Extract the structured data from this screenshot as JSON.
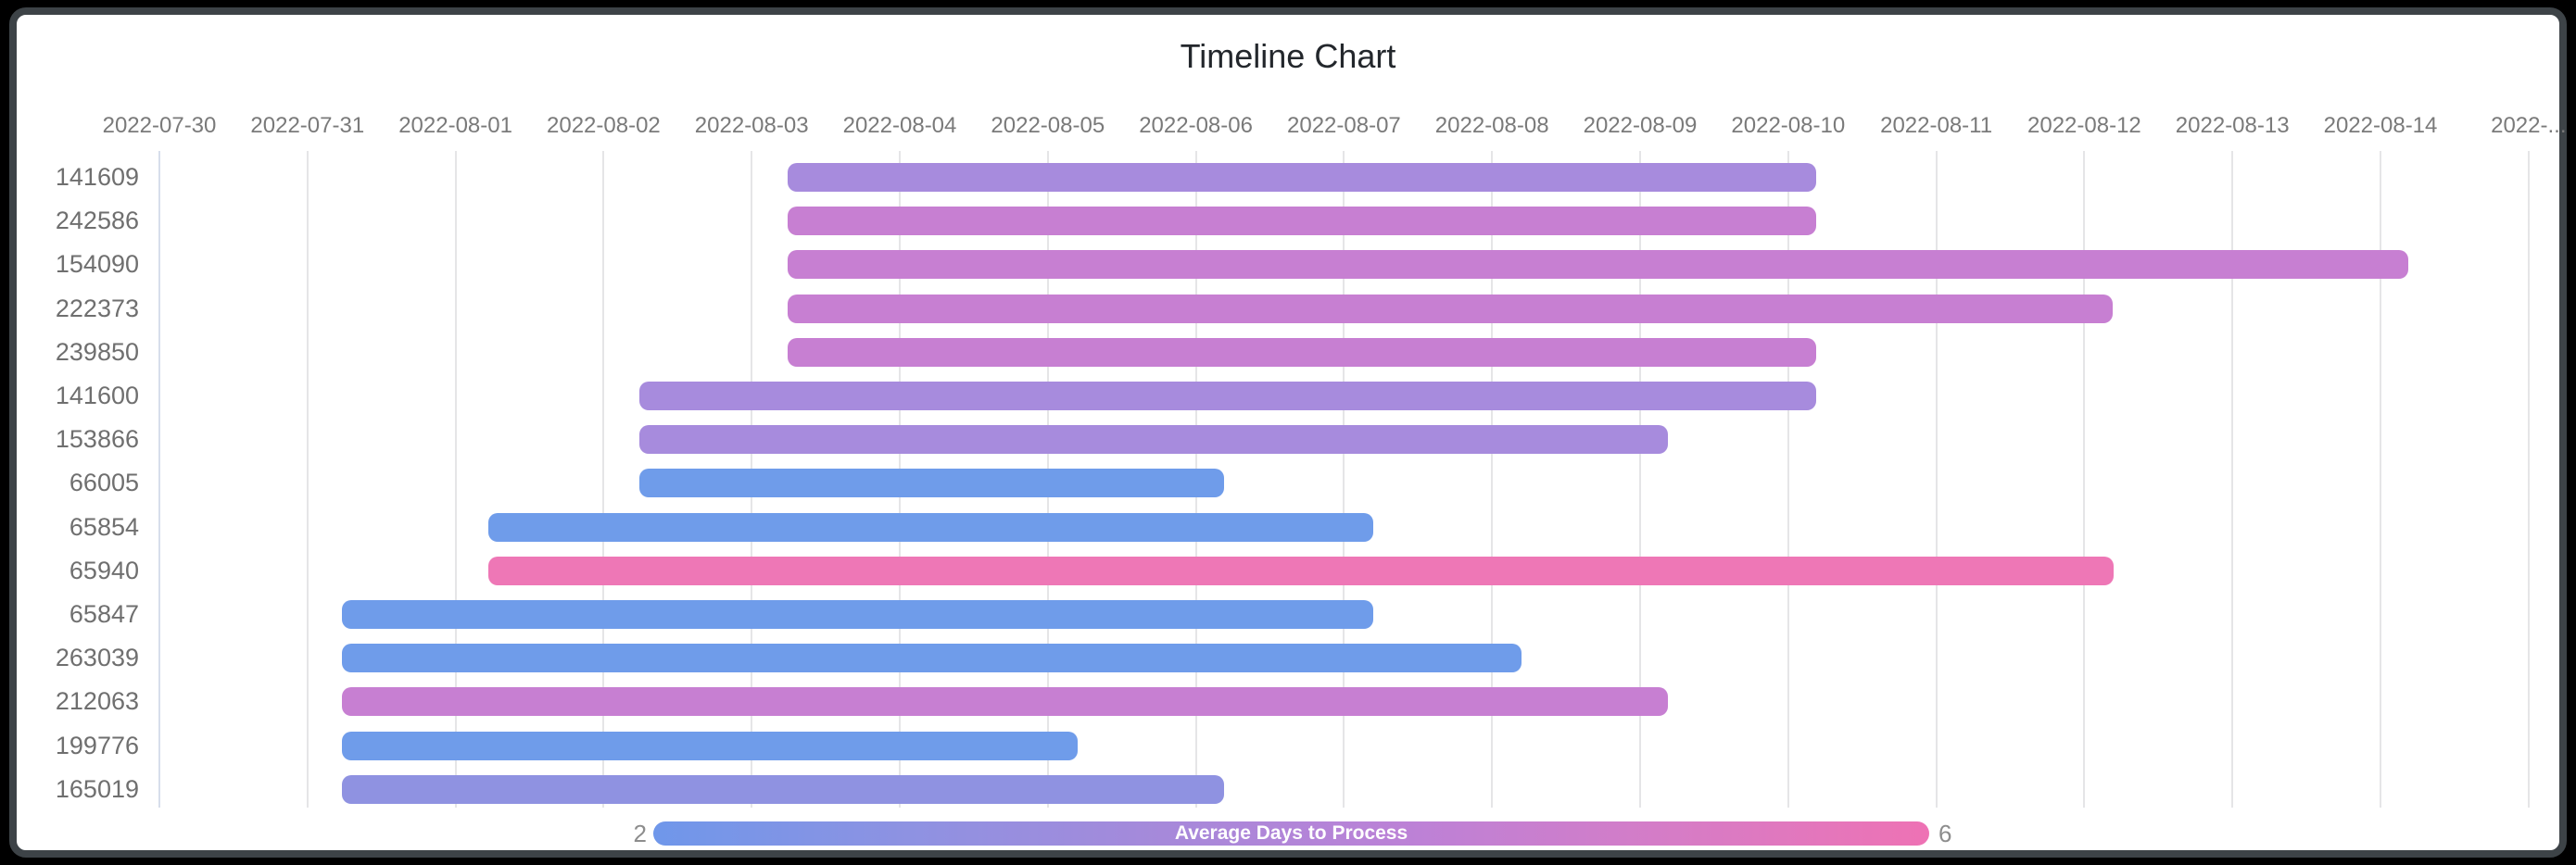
{
  "chart_data": {
    "type": "bar",
    "variant": "timeline-gantt",
    "title": "Timeline Chart",
    "axis": {
      "origin_date": "2022-07-30",
      "tick_labels": [
        "2022-07-30",
        "2022-07-31",
        "2022-08-01",
        "2022-08-02",
        "2022-08-03",
        "2022-08-04",
        "2022-08-05",
        "2022-08-06",
        "2022-08-07",
        "2022-08-08",
        "2022-08-09",
        "2022-08-10",
        "2022-08-11",
        "2022-08-12",
        "2022-08-13",
        "2022-08-14",
        "2022-..."
      ],
      "grid": true
    },
    "rows": [
      {
        "label": "141609",
        "start": "2022-08-03",
        "end": "2022-08-10",
        "start_day": 4.24,
        "end_day": 11.19,
        "color": "#a78bdd"
      },
      {
        "label": "242586",
        "start": "2022-08-03",
        "end": "2022-08-10",
        "start_day": 4.24,
        "end_day": 11.19,
        "color": "#c77fd2"
      },
      {
        "label": "154090",
        "start": "2022-08-03",
        "end": "2022-08-14",
        "start_day": 4.24,
        "end_day": 15.19,
        "color": "#c77fd2"
      },
      {
        "label": "222373",
        "start": "2022-08-03",
        "end": "2022-08-12",
        "start_day": 4.24,
        "end_day": 13.19,
        "color": "#c77fd2"
      },
      {
        "label": "239850",
        "start": "2022-08-03",
        "end": "2022-08-10",
        "start_day": 4.24,
        "end_day": 11.19,
        "color": "#c77fd2"
      },
      {
        "label": "141600",
        "start": "2022-08-02",
        "end": "2022-08-10",
        "start_day": 3.24,
        "end_day": 11.19,
        "color": "#a78bdd"
      },
      {
        "label": "153866",
        "start": "2022-08-02",
        "end": "2022-08-09",
        "start_day": 3.24,
        "end_day": 10.19,
        "color": "#a78bdd"
      },
      {
        "label": "66005",
        "start": "2022-08-02",
        "end": "2022-08-06",
        "start_day": 3.24,
        "end_day": 7.19,
        "color": "#6f9cea"
      },
      {
        "label": "65854",
        "start": "2022-08-01",
        "end": "2022-08-07",
        "start_day": 2.22,
        "end_day": 8.2,
        "color": "#6f9cea"
      },
      {
        "label": "65940",
        "start": "2022-08-01",
        "end": "2022-08-12",
        "start_day": 2.22,
        "end_day": 13.2,
        "color": "#ee77b6"
      },
      {
        "label": "65847",
        "start": "2022-07-31",
        "end": "2022-08-07",
        "start_day": 1.23,
        "end_day": 8.2,
        "color": "#6f9cea"
      },
      {
        "label": "263039",
        "start": "2022-07-31",
        "end": "2022-08-08",
        "start_day": 1.23,
        "end_day": 9.2,
        "color": "#6f9cea"
      },
      {
        "label": "212063",
        "start": "2022-07-31",
        "end": "2022-08-09",
        "start_day": 1.23,
        "end_day": 10.19,
        "color": "#c77fd2"
      },
      {
        "label": "199776",
        "start": "2022-07-31",
        "end": "2022-08-05",
        "start_day": 1.23,
        "end_day": 6.2,
        "color": "#6f9cea"
      },
      {
        "label": "165019",
        "start": "2022-07-31",
        "end": "2022-08-06",
        "start_day": 1.23,
        "end_day": 7.19,
        "color": "#8f92e1"
      }
    ],
    "legend": {
      "title": "Average Days to Process",
      "min_label": "2",
      "max_label": "6",
      "position": "bottom",
      "gradient": [
        "#6f97ea",
        "#8e92e2",
        "#a689da",
        "#bd81d6",
        "#d67cc6",
        "#ee72b4"
      ]
    }
  }
}
